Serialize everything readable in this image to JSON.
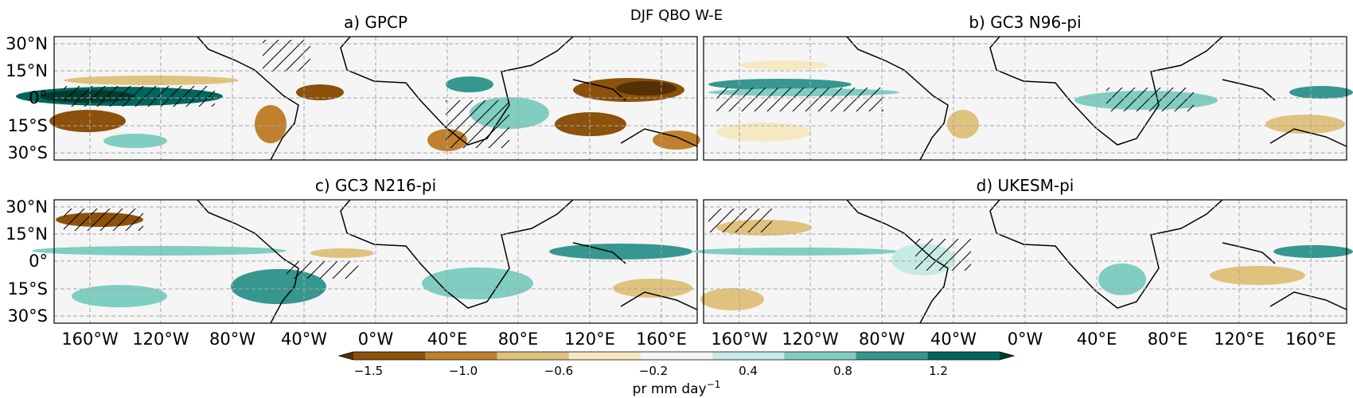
{
  "figure": {
    "suptitle": "DJF QBO W-E"
  },
  "panels": [
    {
      "id": "a",
      "title": "a) GPCP"
    },
    {
      "id": "b",
      "title": "b) GC3 N96-pi"
    },
    {
      "id": "c",
      "title": "c) GC3 N216-pi"
    },
    {
      "id": "d",
      "title": "d) UKESM-pi"
    }
  ],
  "axes": {
    "lat_labels": [
      "30°N",
      "15°N",
      "0°",
      "15°S",
      "30°S"
    ],
    "lat_values": [
      30,
      15,
      0,
      -15,
      -30
    ],
    "lat_range": [
      -35,
      33
    ],
    "lon_range": [
      -180,
      180
    ],
    "lon_labels": [
      "160°W",
      "120°W",
      "80°W",
      "40°W",
      "0°W",
      "40°E",
      "80°E",
      "120°E",
      "160°E"
    ],
    "lon_values": [
      -160,
      -120,
      -80,
      -40,
      0,
      40,
      80,
      120,
      160
    ],
    "gridlines": true
  },
  "colorbar": {
    "tick_labels": [
      "−1.5",
      "−1.0",
      "−0.6",
      "−0.2",
      "0.4",
      "0.8",
      "1.2"
    ],
    "label_main": "pr mm day",
    "label_exponent": "−1",
    "colors": [
      "#543005",
      "#8c510a",
      "#bf812d",
      "#dfc27d",
      "#f6e8c3",
      "#f5f5f5",
      "#c7eae5",
      "#80cdc1",
      "#35978f",
      "#01665e",
      "#003c30"
    ],
    "extend": "both"
  },
  "map_style": {
    "background": "#f4f5f4",
    "coast_color": "#000000",
    "grid_color": "#a8a8a8",
    "hatch": true
  }
}
